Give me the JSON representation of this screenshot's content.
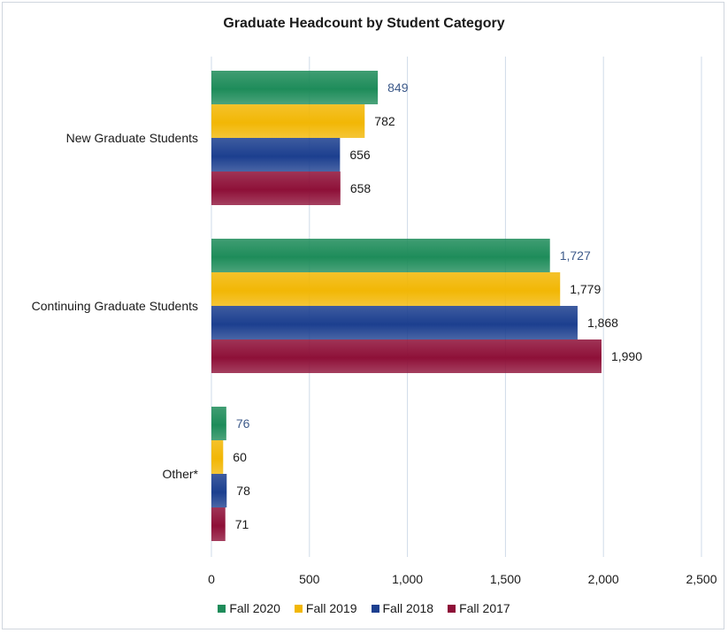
{
  "chart_data": {
    "type": "bar",
    "orientation": "horizontal",
    "title": "Graduate Headcount by Student Category",
    "categories": [
      "New Graduate Students",
      "Continuing Graduate Students",
      "Other*"
    ],
    "series": [
      {
        "name": "Fall 2020",
        "color": "#1e8c5a",
        "label_color": "#3d5a8a",
        "values": [
          849,
          1727,
          76
        ],
        "labels": [
          "849",
          "1,727",
          "76"
        ]
      },
      {
        "name": "Fall 2019",
        "color": "#f2b705",
        "label_color": "#1a1a1a",
        "values": [
          782,
          1779,
          60
        ],
        "labels": [
          "782",
          "1,779",
          "60"
        ]
      },
      {
        "name": "Fall 2018",
        "color": "#1c3f8f",
        "label_color": "#1a1a1a",
        "values": [
          656,
          1868,
          78
        ],
        "labels": [
          "656",
          "1,868",
          "78"
        ]
      },
      {
        "name": "Fall 2017",
        "color": "#8e1038",
        "label_color": "#1a1a1a",
        "values": [
          658,
          1990,
          71
        ],
        "labels": [
          "658",
          "1,990",
          "71"
        ]
      }
    ],
    "xlim": [
      0,
      2500
    ],
    "xticks": [
      0,
      500,
      1000,
      1500,
      2000,
      2500
    ],
    "xtick_labels": [
      "0",
      "500",
      "1,000",
      "1,500",
      "2,000",
      "2,500"
    ],
    "grid": "vertical",
    "legend": "bottom"
  }
}
